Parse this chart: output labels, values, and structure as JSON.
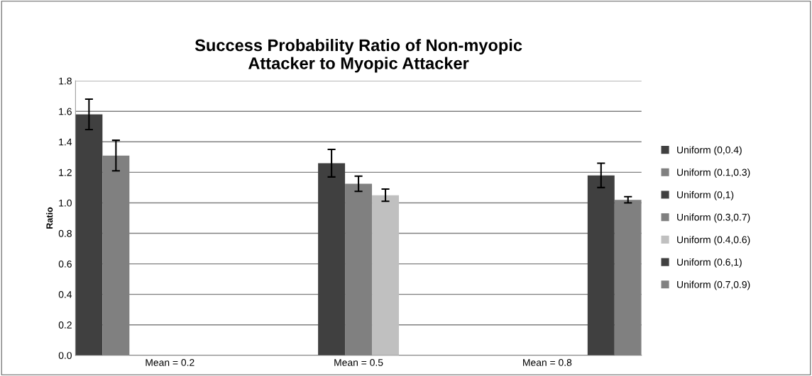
{
  "chart_data": {
    "type": "bar",
    "title": "Success Probability Ratio of Non-myopic\nAttacker to Myopic Attacker",
    "ylabel": "Ratio",
    "categories": [
      "Mean = 0.2",
      "Mean = 0.5",
      "Mean = 0.8"
    ],
    "series": [
      {
        "name": "Uniform (0,0.4)",
        "color": "#404040",
        "values": [
          1.58,
          null,
          null
        ],
        "errors": [
          0.1,
          null,
          null
        ]
      },
      {
        "name": "Uniform (0.1,0.3)",
        "color": "#808080",
        "values": [
          1.31,
          null,
          null
        ],
        "errors": [
          0.1,
          null,
          null
        ]
      },
      {
        "name": "Uniform (0,1)",
        "color": "#404040",
        "values": [
          null,
          1.26,
          null
        ],
        "errors": [
          null,
          0.09,
          null
        ]
      },
      {
        "name": "Uniform (0.3,0.7)",
        "color": "#808080",
        "values": [
          null,
          1.125,
          null
        ],
        "errors": [
          null,
          0.05,
          null
        ]
      },
      {
        "name": "Uniform (0.4,0.6)",
        "color": "#c0c0c0",
        "values": [
          null,
          1.05,
          null
        ],
        "errors": [
          null,
          0.04,
          null
        ]
      },
      {
        "name": "Uniform (0.6,1)",
        "color": "#404040",
        "values": [
          null,
          null,
          1.18
        ],
        "errors": [
          null,
          null,
          0.08
        ]
      },
      {
        "name": "Uniform (0.7,0.9)",
        "color": "#808080",
        "values": [
          null,
          null,
          1.02
        ],
        "errors": [
          null,
          null,
          0.02
        ]
      }
    ],
    "ylim": [
      0,
      1.8
    ],
    "yticks": [
      {
        "value": 0,
        "label": "0.0"
      },
      {
        "value": 0.2,
        "label": "0.2"
      },
      {
        "value": 0.4,
        "label": "0.4"
      },
      {
        "value": 0.6,
        "label": "0.6"
      },
      {
        "value": 0.8,
        "label": "0.8"
      },
      {
        "value": 1.0,
        "label": "1.0"
      },
      {
        "value": 1.2,
        "label": "1.2"
      },
      {
        "value": 1.4,
        "label": "1.4"
      },
      {
        "value": 1.6,
        "label": "1.6"
      },
      {
        "value": 1.8,
        "label": "1.8"
      }
    ],
    "grid": "y",
    "legend": "right"
  }
}
